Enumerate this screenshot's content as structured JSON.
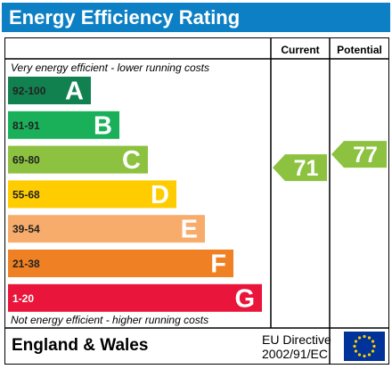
{
  "title": "Energy Efficiency Rating",
  "columns": {
    "current": "Current",
    "potential": "Potential"
  },
  "top_note": "Very energy efficient - lower running costs",
  "bottom_note": "Not energy efficient - higher running costs",
  "footer": {
    "region": "England & Wales",
    "directive_line1": "EU Directive",
    "directive_line2": "2002/91/EC"
  },
  "colors": {
    "title_bg": "#0d7fc4",
    "eu_flag": "#003399",
    "eu_stars": "#ffcc00"
  },
  "chart_data": {
    "type": "bar",
    "title": "Energy Efficiency Rating",
    "categories": [
      "A",
      "B",
      "C",
      "D",
      "E",
      "F",
      "G"
    ],
    "bands": [
      {
        "range": "92-100",
        "letter": "A",
        "color": "#128150"
      },
      {
        "range": "81-91",
        "letter": "B",
        "color": "#1ab05a"
      },
      {
        "range": "69-80",
        "letter": "C",
        "color": "#8cc23f"
      },
      {
        "range": "55-68",
        "letter": "D",
        "color": "#ffcc00"
      },
      {
        "range": "39-54",
        "letter": "E",
        "color": "#f7ac6b"
      },
      {
        "range": "21-38",
        "letter": "F",
        "color": "#ef8023"
      },
      {
        "range": "1-20",
        "letter": "G",
        "color": "#e9153b"
      }
    ],
    "current": {
      "value": 71,
      "band": "C",
      "color": "#8cc23f"
    },
    "potential": {
      "value": 77,
      "band": "C",
      "color": "#8cc23f"
    }
  }
}
